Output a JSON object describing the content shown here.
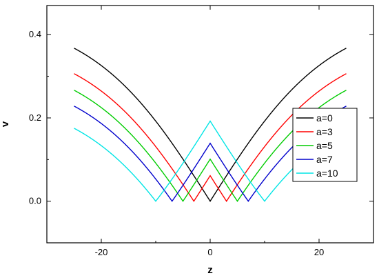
{
  "chart_data": {
    "type": "line",
    "xlabel": "z",
    "ylabel": "v",
    "xlim": [
      -30,
      30
    ],
    "ylim": [
      -0.1,
      0.47
    ],
    "xticks": [
      -20,
      0,
      20
    ],
    "yticks": [
      0.0,
      0.2,
      0.4
    ],
    "xtick_labels": [
      "-20",
      "0",
      "20"
    ],
    "ytick_labels": [
      "0.0",
      "0.2",
      "0.4"
    ],
    "x_range": [
      -25,
      25
    ],
    "legend_position": "right",
    "grid": false,
    "series": [
      {
        "name": "a=0",
        "color": "#000000",
        "a": 0
      },
      {
        "name": "a=3",
        "color": "#ff0000",
        "a": 3
      },
      {
        "name": "a=5",
        "color": "#00cc00",
        "a": 5
      },
      {
        "name": "a=7",
        "color": "#0000cc",
        "a": 7
      },
      {
        "name": "a=10",
        "color": "#00e5e5",
        "a": 10
      }
    ]
  }
}
